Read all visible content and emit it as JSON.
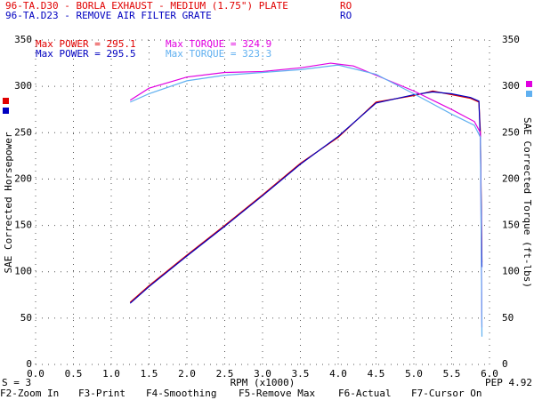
{
  "chart_data": {
    "type": "line",
    "files": [
      {
        "name": "96-TA.D30 - BORLA EXHAUST - MEDIUM (1.75\") PLATE",
        "tag": "RO",
        "color": "#e00000"
      },
      {
        "name": "96-TA.D23 - REMOVE AIR FILTER GRATE",
        "tag": "RO",
        "color": "#0000c0"
      }
    ],
    "xlabel": "RPM (x1000)",
    "ylabel": "SAE Corrected Horsepower",
    "y2label": "SAE Corrected Torque (ft-lbs)",
    "smoothing": "S = 3",
    "pep": "PEP 4.92",
    "function_keys": [
      "F2-Zoom In",
      "F3-Print",
      "F4-Smoothing",
      "F5-Remove Max",
      "F6-Actual",
      "F7-Cursor On"
    ],
    "xlim": [
      0,
      6
    ],
    "xticks": [
      {
        "value": 0,
        "label": "0.0"
      },
      0.5,
      {
        "value": 1,
        "label": "1.0"
      },
      1.5,
      {
        "value": 2,
        "label": "2.0"
      },
      2.5,
      {
        "value": 3,
        "label": "3.0"
      },
      3.5,
      {
        "value": 4,
        "label": "4.0"
      },
      4.5,
      {
        "value": 5,
        "label": "5.0"
      },
      5.5,
      {
        "value": 6,
        "label": "6.0"
      }
    ],
    "ylim": [
      0,
      350
    ],
    "yticks": [
      0,
      50,
      100,
      150,
      200,
      250,
      300,
      350
    ],
    "y2lim": [
      0,
      350
    ],
    "y2ticks": [
      0,
      50,
      100,
      150,
      200,
      250,
      300,
      350
    ],
    "grid": true,
    "series": [
      {
        "name": "Max POWER = 295.1",
        "color": "#e00000",
        "x": [
          1.25,
          1.5,
          2.0,
          2.5,
          3.0,
          3.5,
          4.0,
          4.5,
          5.0,
          5.25,
          5.5,
          5.75,
          5.86,
          5.88,
          5.9
        ],
        "values": [
          67,
          85,
          118,
          150,
          183,
          217,
          245,
          283,
          290,
          295,
          291,
          287,
          283,
          250,
          110
        ]
      },
      {
        "name": "Max POWER = 295.5",
        "color": "#0000c0",
        "x": [
          1.25,
          1.5,
          2.0,
          2.5,
          3.0,
          3.5,
          4.0,
          4.5,
          5.0,
          5.25,
          5.5,
          5.75,
          5.86,
          5.88,
          5.9
        ],
        "values": [
          66,
          84,
          117,
          149,
          182,
          216,
          246,
          282,
          291,
          294,
          292,
          288,
          284,
          240,
          105
        ]
      },
      {
        "name": "Max TORQUE = 324.9",
        "color": "#e000e0",
        "axis": "y2",
        "x": [
          1.25,
          1.5,
          2.0,
          2.5,
          3.0,
          3.5,
          3.9,
          4.2,
          4.5,
          5.0,
          5.5,
          5.8,
          5.88,
          5.9
        ],
        "values": [
          285,
          298,
          310,
          315,
          316,
          320,
          325,
          322,
          312,
          295,
          275,
          262,
          250,
          40
        ]
      },
      {
        "name": "Max TORQUE = 323.3",
        "color": "#60b0f0",
        "axis": "y2",
        "x": [
          1.25,
          1.5,
          2.0,
          2.5,
          3.0,
          3.5,
          4.0,
          4.5,
          5.0,
          5.5,
          5.8,
          5.88,
          5.9
        ],
        "values": [
          283,
          292,
          306,
          312,
          315,
          318,
          323,
          313,
          292,
          270,
          258,
          245,
          30
        ]
      }
    ]
  }
}
